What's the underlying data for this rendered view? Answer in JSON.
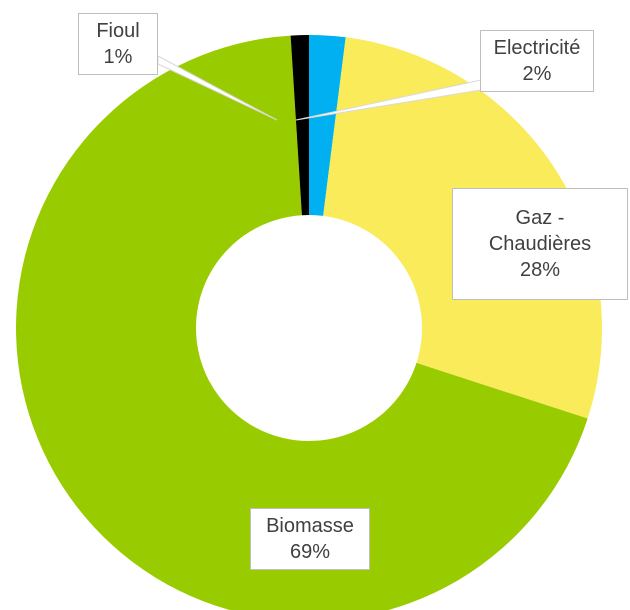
{
  "chart_data": {
    "type": "donut",
    "categories": [
      "Electricité",
      "Gaz - Chaudières",
      "Biomasse",
      "Fioul"
    ],
    "values": [
      2,
      28,
      69,
      1
    ],
    "value_labels": [
      "2%",
      "28%",
      "69%",
      "1%"
    ],
    "colors": [
      "#00b0f0",
      "#f9eb59",
      "#99cc00",
      "#000000"
    ]
  }
}
